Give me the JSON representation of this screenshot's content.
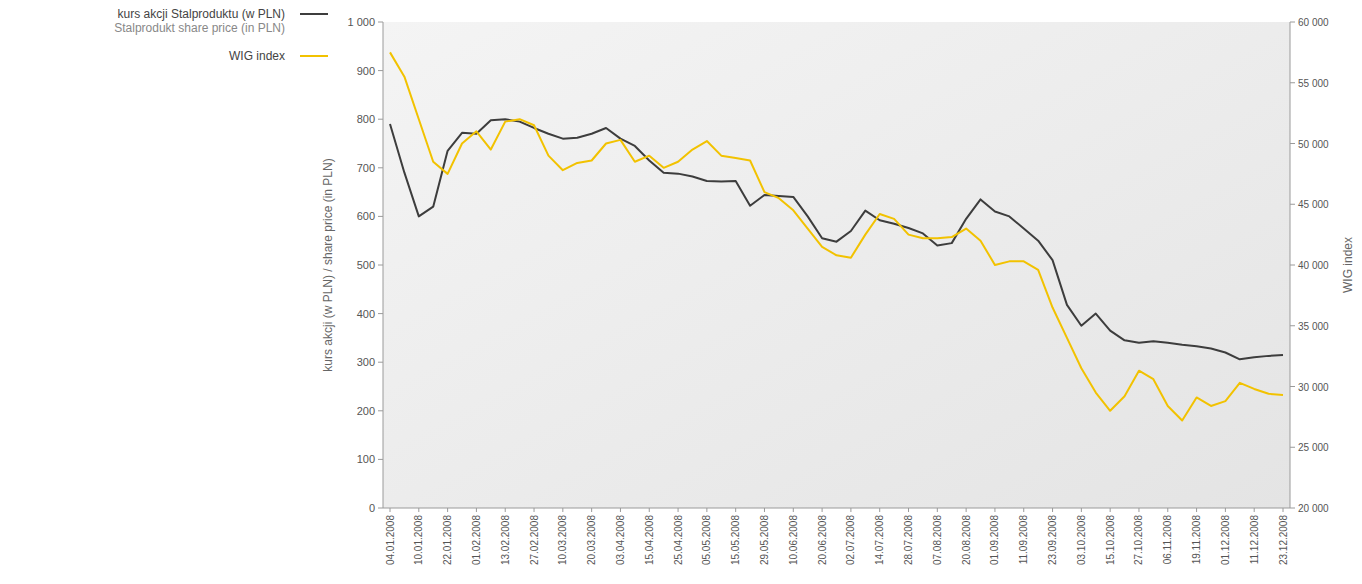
{
  "chart_data": {
    "type": "line",
    "y_label": "kurs akcji (w PLN) / share price (in PLN)",
    "y2_label": "WIG index",
    "legend": "top-left",
    "grid": false,
    "categories": [
      "04.01.2008",
      null,
      "10.01.2008",
      null,
      "22.01.2008",
      null,
      "01.02.2008",
      null,
      "13.02.2008",
      null,
      "27.02.2008",
      null,
      "10.03.2008",
      null,
      "20.03.2008",
      null,
      "03.04.2008",
      null,
      "15.04.2008",
      null,
      "25.04.2008",
      null,
      "05.05.2008",
      null,
      "15.05.2008",
      null,
      "29.05.2008",
      null,
      "10.06.2008",
      null,
      "20.06.2008",
      null,
      "02.07.2008",
      null,
      "14.07.2008",
      null,
      "28.07.2008",
      null,
      "07.08.2008",
      null,
      "20.08.2008",
      null,
      "01.09.2008",
      null,
      "11.09.2008",
      null,
      "23.09.2008",
      null,
      "03.10.2008",
      null,
      "15.10.2008",
      null,
      "27.10.2008",
      null,
      "06.11.2008",
      null,
      "19.11.2008",
      null,
      "01.12.2008",
      null,
      "11.12.2008",
      null,
      "23.12.2008"
    ],
    "ylim": [
      0,
      1000
    ],
    "yticks": [
      0,
      100,
      200,
      300,
      400,
      500,
      600,
      700,
      800,
      900,
      {
        "value": 1000,
        "label": "1 000"
      }
    ],
    "y2lim": [
      20000,
      60000
    ],
    "y2ticks": [
      {
        "value": 20000,
        "label": "20 000"
      },
      {
        "value": 25000,
        "label": "25 000"
      },
      {
        "value": 30000,
        "label": "30 000"
      },
      {
        "value": 35000,
        "label": "35 000"
      },
      {
        "value": 40000,
        "label": "40 000"
      },
      {
        "value": 45000,
        "label": "45 000"
      },
      {
        "value": 50000,
        "label": "50 000"
      },
      {
        "value": 55000,
        "label": "55 000"
      },
      {
        "value": 60000,
        "label": "60 000"
      }
    ],
    "series": [
      {
        "name": "kurs akcji Stalproduktu (w PLN)\nStalprodukt share price (in PLN)",
        "color": "#3d3d3d",
        "values": [
          790,
          690,
          600,
          620,
          735,
          772,
          770,
          798,
          800,
          795,
          782,
          770,
          760,
          762,
          770,
          782,
          760,
          745,
          715,
          690,
          688,
          682,
          673,
          672,
          673,
          622,
          644,
          642,
          640,
          600,
          555,
          548,
          570,
          612,
          592,
          585,
          576,
          565,
          540,
          545,
          595,
          635,
          610,
          600,
          575,
          550,
          510,
          418,
          375,
          400,
          365,
          345,
          340,
          343,
          340,
          336,
          333,
          328,
          320,
          306,
          310,
          313,
          315
        ]
      },
      {
        "name": "WIG index",
        "color": "#f2c200",
        "axis": "y2",
        "values": [
          57500,
          55500,
          52000,
          48500,
          47500,
          50000,
          51000,
          49500,
          51800,
          52000,
          51500,
          49000,
          47800,
          48400,
          48600,
          50000,
          50300,
          48500,
          49000,
          48000,
          48500,
          49500,
          50200,
          49000,
          48800,
          48600,
          46000,
          45500,
          44500,
          43000,
          41500,
          40800,
          40600,
          42500,
          44200,
          43800,
          42500,
          42200,
          42200,
          42300,
          43000,
          42000,
          40000,
          40300,
          40300,
          39600,
          36500,
          34000,
          31500,
          29500,
          28000,
          29200,
          31300,
          30600,
          28400,
          27200,
          29100,
          28400,
          28800,
          30300,
          29800,
          29400,
          29300
        ]
      }
    ]
  }
}
